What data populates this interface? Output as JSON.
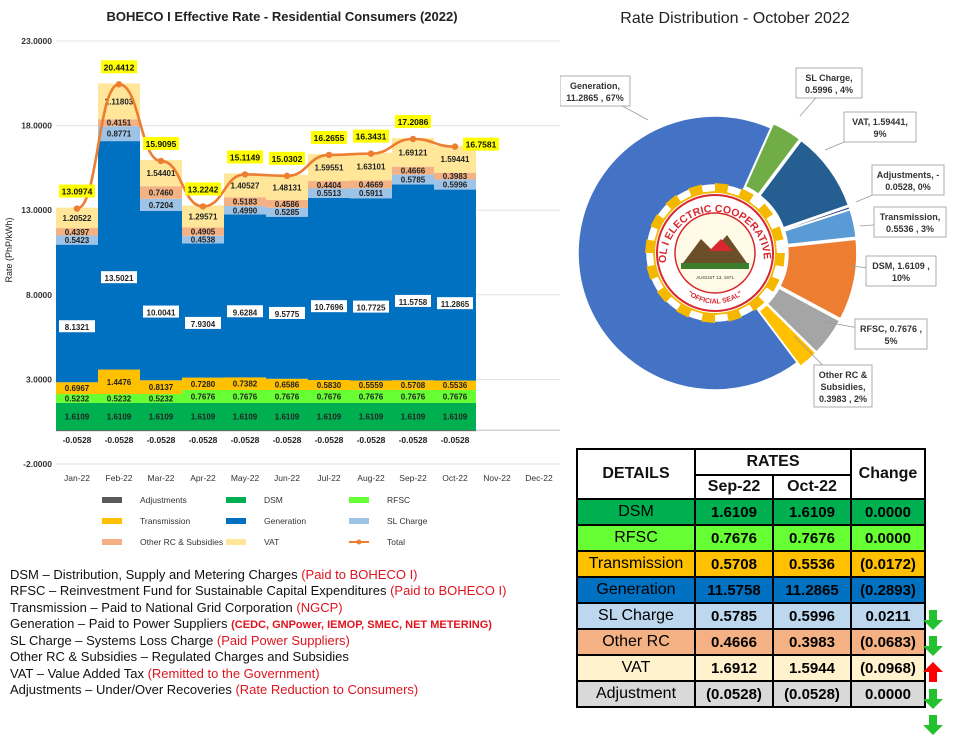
{
  "chart_data": [
    {
      "type": "bar",
      "stacked": true,
      "title": "BOHECO I Effective Rate - Residential Consumers (2022)",
      "ylabel": "Rate (PhP/kWh)",
      "ylim": [
        -2,
        23
      ],
      "yticks": [
        "-2.0000",
        "3.0000",
        "8.0000",
        "13.0000",
        "18.0000",
        "23.0000"
      ],
      "categories": [
        "Jan-22",
        "Feb-22",
        "Mar-22",
        "Apr-22",
        "May-22",
        "Jun-22",
        "Jul-22",
        "Aug-22",
        "Sep-22",
        "Oct-22",
        "Nov-22",
        "Dec-22"
      ],
      "series": [
        {
          "name": "Adjustments",
          "color": "#595959",
          "values": [
            -0.0528,
            -0.0528,
            -0.0528,
            -0.0528,
            -0.0528,
            -0.0528,
            -0.0528,
            -0.0528,
            -0.0528,
            -0.0528,
            null,
            null
          ],
          "labels": [
            "-0.0528",
            "-0.0528",
            "-0.0528",
            "-0.0528",
            "-0.0528",
            "-0.0528",
            "-0.0528",
            "-0.0528",
            "-0.0528",
            "-0.0528",
            "",
            ""
          ]
        },
        {
          "name": "DSM",
          "color": "#00b050",
          "values": [
            1.6109,
            1.6109,
            1.6109,
            1.6109,
            1.6109,
            1.6109,
            1.6109,
            1.6109,
            1.6109,
            1.6109,
            null,
            null
          ],
          "labels": [
            "1.6109",
            "1.6109",
            "1.6109",
            "1.6109",
            "1.6109",
            "1.6109",
            "1.6109",
            "1.6109",
            "1.6109",
            "1.6109",
            "",
            ""
          ]
        },
        {
          "name": "RFSC",
          "color": "#66ff33",
          "values": [
            0.5232,
            0.5232,
            0.5232,
            0.7676,
            0.7676,
            0.7676,
            0.7676,
            0.7676,
            0.7676,
            0.7676,
            null,
            null
          ],
          "labels": [
            "0.5232",
            "0.5232",
            "0.5232",
            "0.7676",
            "0.7676",
            "0.7676",
            "0.7676",
            "0.7676",
            "0.7676",
            "0.7676",
            "",
            ""
          ]
        },
        {
          "name": "Transmission",
          "color": "#ffc000",
          "values": [
            0.6967,
            1.4476,
            0.8137,
            0.728,
            0.7382,
            0.6586,
            0.583,
            0.5559,
            0.5708,
            0.5536,
            null,
            null
          ],
          "labels": [
            "0.6967",
            "1.4476",
            "0.8137",
            "0.7280",
            "0.7382",
            "0.6586",
            "0.5830",
            "0.5559",
            "0.5708",
            "0.5536",
            "",
            ""
          ]
        },
        {
          "name": "Generation",
          "color": "#0070c0",
          "values": [
            8.1321,
            13.5021,
            10.0041,
            7.9304,
            9.6284,
            9.5775,
            10.7696,
            10.7725,
            11.5758,
            11.2865,
            null,
            null
          ],
          "labels": [
            "8.1321",
            "13.5021",
            "10.0041",
            "7.9304",
            "9.6284",
            "9.5775",
            "10.7696",
            "10.7725",
            "11.5758",
            "11.2865",
            "",
            ""
          ]
        },
        {
          "name": "SL Charge",
          "color": "#9dc3e6",
          "values": [
            0.5423,
            0.8771,
            0.7204,
            0.4538,
            0.499,
            0.5285,
            0.5513,
            0.5911,
            0.5785,
            0.5996,
            null,
            null
          ],
          "labels": [
            "0.5423",
            "0.8771",
            "0.7204",
            "0.4538",
            "0.4990",
            "0.5285",
            "0.5513",
            "0.5911",
            "0.5785",
            "0.5996",
            "",
            ""
          ]
        },
        {
          "name": "Other RC & Subsidies",
          "color": "#f4b183",
          "values": [
            0.4397,
            0.4151,
            0.746,
            0.4905,
            0.5183,
            0.4586,
            0.4404,
            0.4669,
            0.4666,
            0.3983,
            null,
            null
          ],
          "labels": [
            "0.4397",
            "0.4151",
            "0.7460",
            "0.4905",
            "0.5183",
            "0.4586",
            "0.4404",
            "0.4669",
            "0.4666",
            "0.3983",
            "",
            ""
          ]
        },
        {
          "name": "VAT",
          "color": "#ffe699",
          "values": [
            1.20522,
            2.11803,
            1.54401,
            1.29571,
            1.40527,
            1.48131,
            1.59551,
            1.63101,
            1.69121,
            1.59441,
            null,
            null
          ],
          "labels": [
            "1.20522",
            "2.11803",
            "1.54401",
            "1.29571",
            "1.40527",
            "1.48131",
            "1.59551",
            "1.63101",
            "1.69121",
            "1.59441",
            "",
            ""
          ]
        }
      ],
      "total": {
        "name": "Total",
        "color": "#ed7d31",
        "values": [
          13.0974,
          20.4412,
          15.9095,
          13.2242,
          15.1149,
          15.0302,
          16.2655,
          16.3431,
          17.2086,
          16.7581,
          null,
          null
        ],
        "labels": [
          "13.0974",
          "20.4412",
          "15.9095",
          "13.2242",
          "15.1149",
          "15.0302",
          "16.2655",
          "16.3431",
          "17.2086",
          "16.7581",
          "",
          ""
        ]
      },
      "legend_position": "bottom",
      "grid": true
    },
    {
      "type": "pie",
      "title": "Rate Distribution - October 2022",
      "slices": [
        {
          "name": "Generation",
          "value": 11.2865,
          "label": "Generation,\n11.2865 , 67%",
          "color": "#4472c4"
        },
        {
          "name": "SL Charge",
          "value": 0.5996,
          "label": "SL Charge,\n0.5996 , 4%",
          "color": "#70ad47"
        },
        {
          "name": "VAT",
          "value": 1.59441,
          "label": "VAT, 1.59441,\n9%",
          "color": "#255e91"
        },
        {
          "name": "Adjustments",
          "value": 0.0528,
          "label": "Adjustments, -\n0.0528, 0%",
          "color": "#264478"
        },
        {
          "name": "Transmission",
          "value": 0.5536,
          "label": "Transmission,\n0.5536 , 3%",
          "color": "#5b9bd5"
        },
        {
          "name": "DSM",
          "value": 1.6109,
          "label": "DSM, 1.6109 ,\n10%",
          "color": "#ed7d31"
        },
        {
          "name": "RFSC",
          "value": 0.7676,
          "label": "RFSC, 0.7676 ,\n5%",
          "color": "#a5a5a5"
        },
        {
          "name": "Other RC & Subsidies",
          "value": 0.3983,
          "label": "Other RC &\nSubsidies,\n0.3983 , 2%",
          "color": "#ffc000"
        }
      ],
      "seal": {
        "text": "BOHOL I ELECTRIC COOPERATIVE, INC.",
        "sub": "OFFICIAL SEAL",
        "date": "AUGUST 13, 1971"
      }
    }
  ],
  "notes": [
    {
      "term": "DSM – Distribution, Supply and Metering Charges ",
      "paid": "(Paid to BOHECO I)"
    },
    {
      "term": "RFSC – Reinvestment Fund for Sustainable Capital Expenditures ",
      "paid": "(Paid to BOHECO I)"
    },
    {
      "term": "Transmission – Paid to National Grid Corporation ",
      "paid": "(NGCP)"
    },
    {
      "term": "Generation – Paid to Power Suppliers ",
      "paid": "(CEDC, GNPower, IEMOP, SMEC, NET METERING)"
    },
    {
      "term": "SL Charge – Systems Loss Charge ",
      "paid": "(Paid Power Suppliers)"
    },
    {
      "term": "Other RC & Subsidies – Regulated Charges and Subsidies",
      "paid": ""
    },
    {
      "term": "VAT – Value Added Tax ",
      "paid": "(Remitted to the Government)"
    },
    {
      "term": "Adjustments – Under/Over Recoveries ",
      "paid": "(Rate Reduction to Consumers)"
    }
  ],
  "table": {
    "h_details": "DETAILS",
    "h_rates": "RATES",
    "h_change": "Change",
    "h_m1": "Sep-22",
    "h_m2": "Oct-22",
    "rows": [
      {
        "label": "DSM",
        "sep": "1.6109",
        "oct": "1.6109",
        "change": "0.0000",
        "bg": "#00b050",
        "fg": "#000000",
        "arrow": ""
      },
      {
        "label": "RFSC",
        "sep": "0.7676",
        "oct": "0.7676",
        "change": "0.0000",
        "bg": "#66ff33",
        "fg": "#000000",
        "arrow": ""
      },
      {
        "label": "Transmission",
        "sep": "0.5708",
        "oct": "0.5536",
        "change": "(0.0172)",
        "bg": "#ffc000",
        "fg": "#000000",
        "arrow": "down"
      },
      {
        "label": "Generation",
        "sep": "11.5758",
        "oct": "11.2865",
        "change": "(0.2893)",
        "bg": "#0070c0",
        "fg": "#000000",
        "arrow": "down"
      },
      {
        "label": "SL Charge",
        "sep": "0.5785",
        "oct": "0.5996",
        "change": "0.0211",
        "bg": "#bdd7ee",
        "fg": "#000000",
        "arrow": "up"
      },
      {
        "label": "Other RC",
        "sep": "0.4666",
        "oct": "0.3983",
        "change": "(0.0683)",
        "bg": "#f4b183",
        "fg": "#000000",
        "arrow": "down"
      },
      {
        "label": "VAT",
        "sep": "1.6912",
        "oct": "1.5944",
        "change": "(0.0968)",
        "bg": "#fff2cc",
        "fg": "#000000",
        "arrow": "down"
      },
      {
        "label": "Adjustment",
        "sep": "(0.0528)",
        "oct": "(0.0528)",
        "change": "0.0000",
        "bg": "#d9d9d9",
        "fg": "#000000",
        "arrow": ""
      }
    ]
  }
}
